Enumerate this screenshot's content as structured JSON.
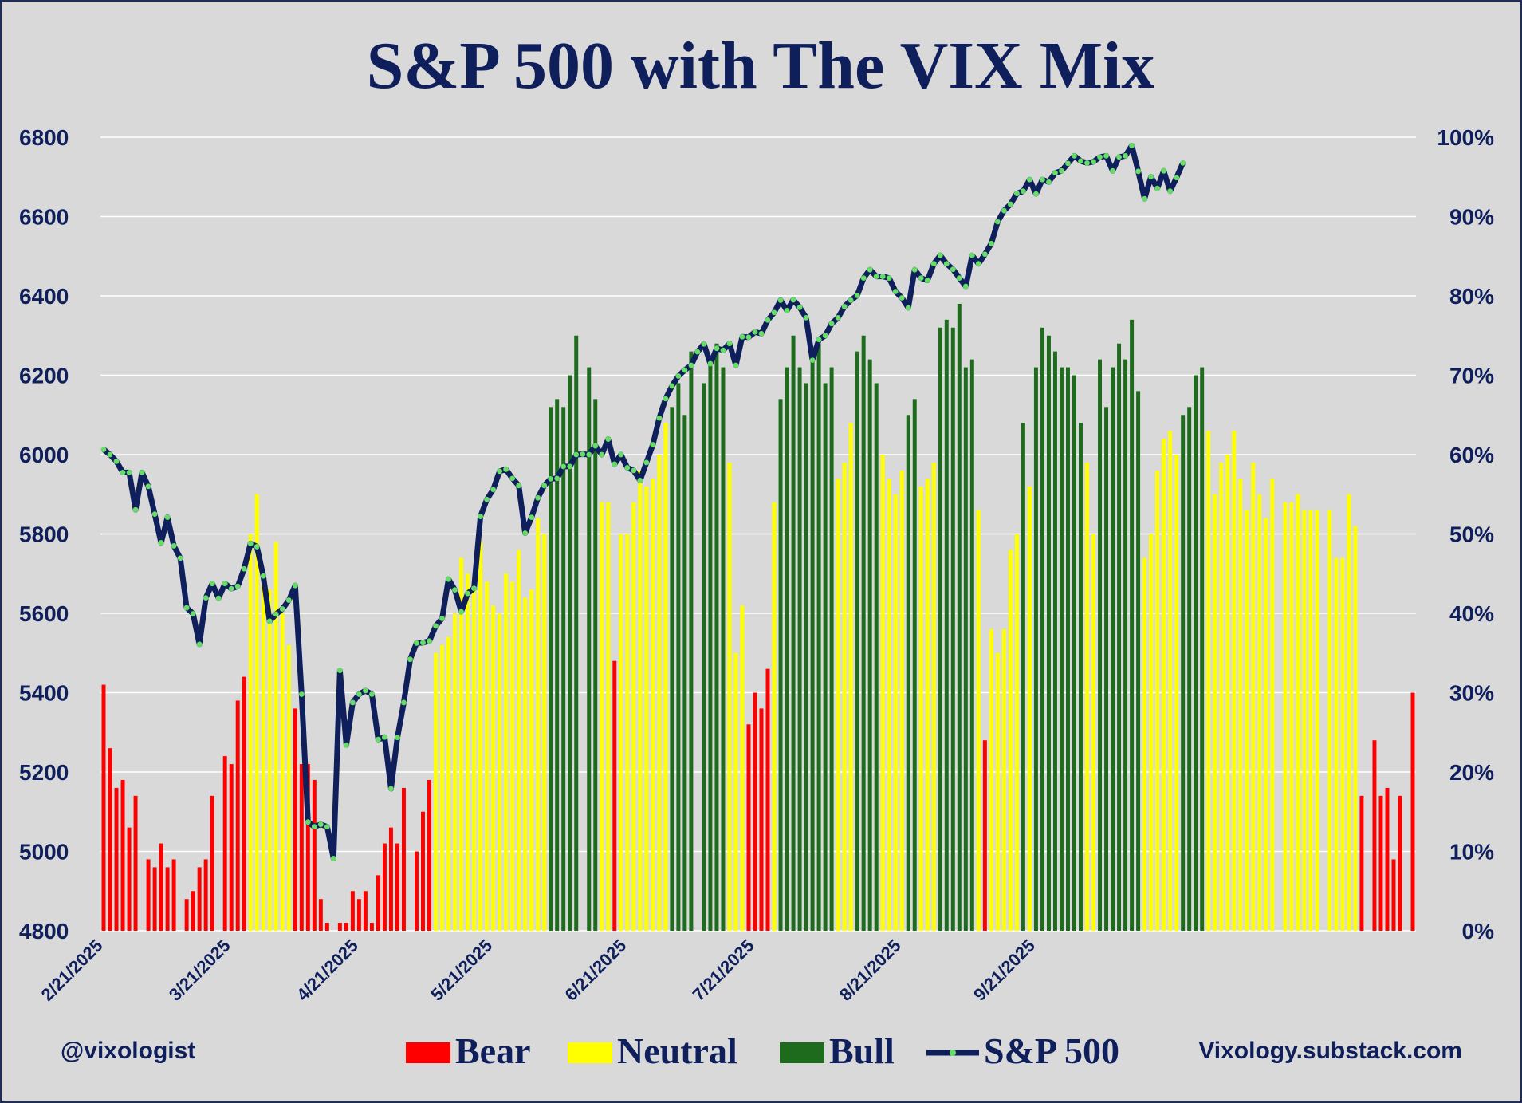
{
  "credits": {
    "left": "@vixologist",
    "right": "Vixology.substack.com"
  },
  "colors": {
    "bear": "#ff0000",
    "neutral": "#ffff00",
    "bull": "#1e6b1e",
    "sp500_line": "#0f1f5c",
    "sp500_marker": "#66dd66",
    "background": "#d9d9d9",
    "grid": "#ffffff",
    "text": "#0f1f5c"
  },
  "chart_data": {
    "type": "bar+line",
    "title": "S&P 500 with The VIX Mix",
    "grid": true,
    "legend_position": "bottom",
    "legend": [
      {
        "label": "Bear",
        "kind": "bar",
        "color": "#ff0000"
      },
      {
        "label": "Neutral",
        "kind": "bar",
        "color": "#ffff00"
      },
      {
        "label": "Bull",
        "kind": "bar",
        "color": "#1e6b1e"
      },
      {
        "label": "S&P 500",
        "kind": "line",
        "color": "#0f1f5c"
      }
    ],
    "x_tick_labels": [
      "2/21/2025",
      "3/21/2025",
      "4/21/2025",
      "5/21/2025",
      "6/21/2025",
      "7/21/2025",
      "8/21/2025",
      "9/21/2025"
    ],
    "x_tick_trading_index": [
      0,
      20,
      40,
      61,
      82,
      102,
      125,
      146
    ],
    "left_axis": {
      "ylim": [
        4800,
        6800
      ],
      "ticks": [
        "6800",
        "6600",
        "6400",
        "6200",
        "6000",
        "5800",
        "5600",
        "5400",
        "5200",
        "5000",
        "4800"
      ]
    },
    "right_axis": {
      "ylim": [
        0,
        100
      ],
      "ticks": [
        "100%",
        "90%",
        "80%",
        "70%",
        "60%",
        "50%",
        "40%",
        "30%",
        "20%",
        "10%",
        "0%"
      ]
    },
    "vix_mix": [
      {
        "regime": "bear",
        "pct": [
          31,
          23,
          18,
          19,
          13,
          17,
          0,
          9,
          8,
          11,
          8,
          9,
          0,
          4,
          5,
          8,
          9,
          17,
          0,
          22,
          21,
          29,
          32
        ]
      },
      {
        "regime": "neutral",
        "pct": [
          50,
          55,
          45,
          43,
          49,
          40,
          36
        ]
      },
      {
        "regime": "bear",
        "pct": [
          28,
          21,
          21,
          19,
          4,
          1,
          0,
          1,
          1,
          5,
          4,
          5,
          1,
          7,
          11,
          13,
          11,
          18,
          0,
          10,
          15,
          19
        ]
      },
      {
        "regime": "neutral",
        "pct": [
          35,
          36,
          37,
          40,
          47,
          45,
          44,
          49,
          44,
          41,
          40,
          45,
          44,
          48,
          42,
          43,
          52,
          50
        ]
      },
      {
        "regime": "bull",
        "pct": [
          66,
          67,
          66,
          70,
          75,
          0,
          71,
          67
        ]
      },
      {
        "regime": "neutral",
        "pct": [
          54,
          54
        ]
      },
      {
        "regime": "bear",
        "pct": [
          34
        ]
      },
      {
        "regime": "neutral",
        "pct": [
          50,
          50,
          54,
          58,
          56,
          57,
          60,
          64
        ]
      },
      {
        "regime": "bull",
        "pct": [
          66,
          69,
          65,
          73,
          0,
          69,
          72,
          74,
          71
        ]
      },
      {
        "regime": "neutral",
        "pct": [
          59,
          35
        ]
      },
      {
        "regime": "neutral",
        "pct": [
          41
        ]
      },
      {
        "regime": "bear",
        "pct": [
          26,
          30,
          28
        ]
      },
      {
        "regime": "bear",
        "pct": [
          33
        ]
      },
      {
        "regime": "neutral",
        "pct": [
          54
        ]
      },
      {
        "regime": "bull",
        "pct": [
          67,
          71,
          75,
          71,
          69,
          72,
          74,
          69,
          71
        ]
      },
      {
        "regime": "neutral",
        "pct": [
          57,
          59,
          64
        ]
      },
      {
        "regime": "bull",
        "pct": [
          73,
          75,
          72,
          69
        ]
      },
      {
        "regime": "neutral",
        "pct": [
          60,
          57,
          55,
          58
        ]
      },
      {
        "regime": "bull",
        "pct": [
          65,
          67
        ]
      },
      {
        "regime": "neutral",
        "pct": [
          56,
          57,
          59
        ]
      },
      {
        "regime": "bull",
        "pct": [
          76,
          77,
          76,
          79,
          71,
          72
        ]
      },
      {
        "regime": "neutral",
        "pct": [
          53
        ]
      },
      {
        "regime": "bear",
        "pct": [
          24
        ]
      },
      {
        "regime": "neutral",
        "pct": [
          38,
          35,
          38,
          48,
          50
        ]
      },
      {
        "regime": "bull",
        "pct": [
          64
        ]
      },
      {
        "regime": "neutral",
        "pct": [
          56
        ]
      },
      {
        "regime": "bull",
        "pct": [
          71,
          76,
          75,
          73,
          71,
          71,
          70,
          64
        ]
      },
      {
        "regime": "neutral",
        "pct": [
          59,
          50
        ]
      },
      {
        "regime": "bull",
        "pct": [
          72,
          66,
          71,
          74,
          72,
          77,
          68
        ]
      },
      {
        "regime": "neutral",
        "pct": [
          47,
          50,
          58,
          62,
          63,
          60
        ]
      },
      {
        "regime": "bull",
        "pct": [
          65,
          66,
          70,
          71
        ]
      },
      {
        "regime": "neutral",
        "pct": [
          63,
          55,
          59,
          60,
          63,
          57,
          53,
          59,
          55,
          52,
          57,
          0,
          54,
          54,
          55,
          53,
          53,
          53,
          0,
          53,
          47,
          47,
          55,
          51
        ]
      },
      {
        "regime": "bear",
        "pct": [
          17,
          0,
          24,
          17,
          18,
          9,
          17,
          0,
          30
        ]
      }
    ],
    "sp500": [
      6013,
      6000,
      5983,
      5955,
      5955,
      5861,
      5955,
      5920,
      5850,
      5778,
      5842,
      5770,
      5739,
      5614,
      5599,
      5522,
      5639,
      5675,
      5638,
      5675,
      5662,
      5668,
      5712,
      5776,
      5768,
      5694,
      5580,
      5598,
      5611,
      5633,
      5670,
      5396,
      5074,
      5062,
      5068,
      5062,
      4982,
      5456,
      5268,
      5375,
      5396,
      5405,
      5396,
      5282,
      5288,
      5158,
      5287,
      5375,
      5484,
      5525,
      5526,
      5530,
      5568,
      5587,
      5686,
      5659,
      5604,
      5650,
      5663,
      5844,
      5887,
      5912,
      5958,
      5963,
      5940,
      5922,
      5802,
      5842,
      5891,
      5922,
      5939,
      5940,
      5970,
      5970,
      6000,
      6001,
      6000,
      6022,
      6000,
      6039,
      5976,
      6000,
      5967,
      5960,
      5935,
      5980,
      6025,
      6092,
      6141,
      6173,
      6198,
      6213,
      6225,
      6259,
      6279,
      6229,
      6268,
      6263,
      6280,
      6225,
      6297,
      6296,
      6309,
      6305,
      6339,
      6358,
      6389,
      6363,
      6390,
      6371,
      6345,
      6238,
      6290,
      6300,
      6330,
      6345,
      6373,
      6389,
      6401,
      6445,
      6466,
      6449,
      6449,
      6445,
      6411,
      6395,
      6370,
      6466,
      6445,
      6439,
      6481,
      6502,
      6481,
      6467,
      6445,
      6424,
      6502,
      6481,
      6505,
      6532,
      6587,
      6615,
      6631,
      6658,
      6664,
      6693,
      6657,
      6693,
      6687,
      6710,
      6715,
      6734,
      6753,
      6740,
      6735,
      6738,
      6750,
      6753,
      6715,
      6750,
      6753,
      6779,
      6714,
      6645,
      6700,
      6671,
      6715,
      6664,
      6698,
      6735
    ]
  }
}
